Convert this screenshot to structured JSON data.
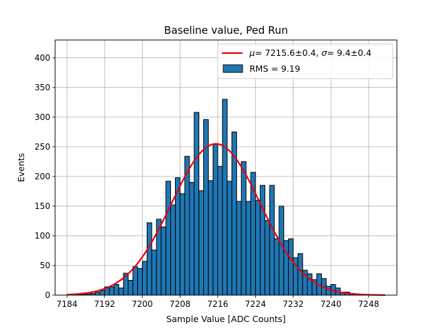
{
  "chart_data": {
    "type": "bar",
    "title": "Baseline value, Ped Run",
    "xlabel": "Sample Value [ADC Counts]",
    "ylabel": "Events",
    "xlim": [
      7181.5,
      7254
    ],
    "ylim": [
      0,
      430
    ],
    "xticks": [
      7184,
      7192,
      7200,
      7208,
      7216,
      7224,
      7232,
      7240,
      7248
    ],
    "yticks": [
      0,
      50,
      100,
      150,
      200,
      250,
      300,
      350,
      400
    ],
    "grid": true,
    "legend_position": "top-right",
    "histogram": {
      "name": "RMS = 9.19",
      "bin_width": 1,
      "bin_start": 7184,
      "counts": [
        0,
        0,
        1,
        1,
        2,
        3,
        5,
        8,
        14,
        14,
        18,
        12,
        37,
        25,
        48,
        45,
        57,
        122,
        76,
        128,
        115,
        192,
        152,
        198,
        171,
        234,
        190,
        308,
        176,
        296,
        193,
        254,
        217,
        330,
        192,
        275,
        158,
        225,
        158,
        207,
        160,
        185,
        126,
        185,
        95,
        150,
        92,
        95,
        63,
        70,
        42,
        36,
        26,
        36,
        28,
        15,
        18,
        12,
        5,
        5,
        3,
        2,
        1,
        1,
        0,
        0
      ],
      "color": "#1f77b4",
      "edgecolor": "#000000"
    },
    "fit": {
      "name_text": "= 7215.6±0.4, ",
      "name_sigma_text": "= 9.4±0.4",
      "mu_symbol": "μ",
      "sigma_symbol": "σ",
      "mu": 7215.6,
      "sigma": 9.4,
      "amplitude": 255,
      "x_range": [
        7184,
        7251.5
      ],
      "color": "#e8000b"
    }
  }
}
